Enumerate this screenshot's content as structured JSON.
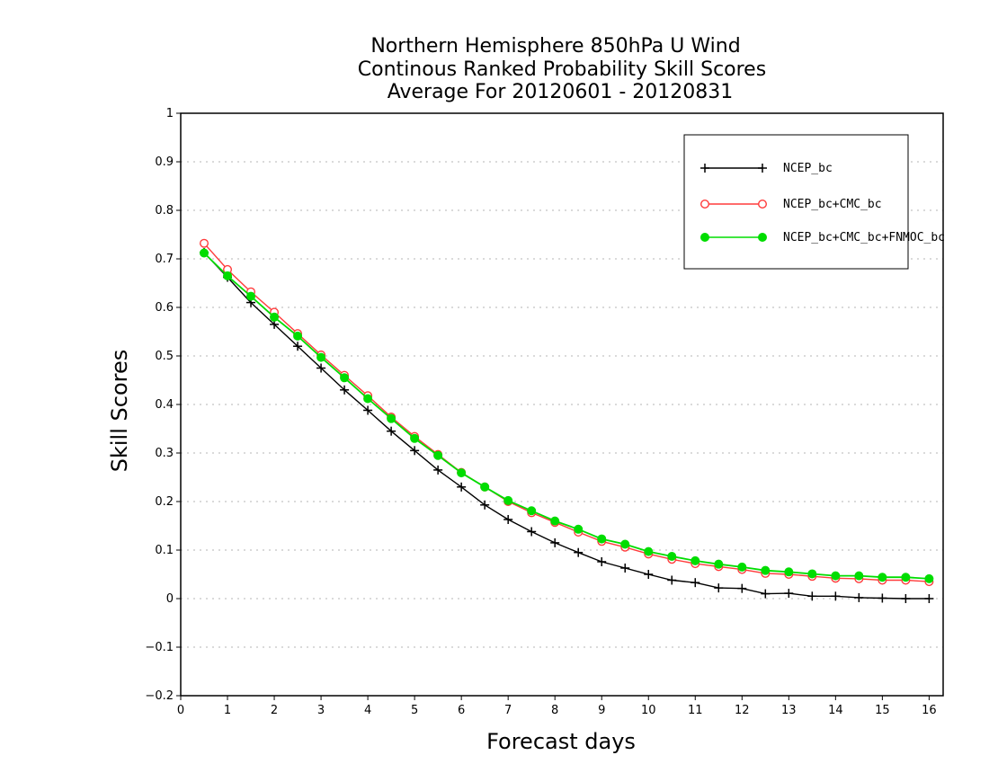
{
  "chart_data": {
    "type": "line",
    "title": [
      "Northern Hemisphere 850hPa U Wind",
      "Continous Ranked Probability Skill Scores",
      "Average For 20120601 - 20120831"
    ],
    "xlabel": "Forecast days",
    "ylabel": "Skill Scores",
    "xlim": [
      0,
      16.3
    ],
    "ylim": [
      -0.2,
      1.0
    ],
    "x_ticks": [
      0,
      1,
      2,
      3,
      4,
      5,
      6,
      7,
      8,
      9,
      10,
      11,
      12,
      13,
      14,
      15,
      16
    ],
    "y_ticks": [
      -0.2,
      -0.1,
      0,
      0.1,
      0.2,
      0.3,
      0.4,
      0.5,
      0.6,
      0.7,
      0.8,
      0.9,
      1
    ],
    "grid": true,
    "legend_position": "top-right",
    "x": [
      0.5,
      1,
      1.5,
      2,
      2.5,
      3,
      3.5,
      4,
      4.5,
      5,
      5.5,
      6,
      6.5,
      7,
      7.5,
      8,
      8.5,
      9,
      9.5,
      10,
      10.5,
      11,
      11.5,
      12,
      12.5,
      13,
      13.5,
      14,
      14.5,
      15,
      15.5,
      16
    ],
    "series": [
      {
        "name": "NCEP_bc",
        "color": "#000000",
        "marker": "plus",
        "values": [
          0.713,
          0.662,
          0.61,
          0.565,
          0.52,
          0.475,
          0.43,
          0.388,
          0.345,
          0.305,
          0.265,
          0.23,
          0.193,
          0.163,
          0.138,
          0.115,
          0.095,
          0.076,
          0.063,
          0.05,
          0.038,
          0.033,
          0.022,
          0.021,
          0.01,
          0.011,
          0.005,
          0.005,
          0.002,
          0.001,
          0.0,
          0.0
        ]
      },
      {
        "name": "NCEP_bc+CMC_bc",
        "color": "#ff3b3b",
        "marker": "open-circle",
        "values": [
          0.732,
          0.678,
          0.632,
          0.59,
          0.546,
          0.502,
          0.46,
          0.418,
          0.374,
          0.334,
          0.297,
          0.26,
          0.23,
          0.2,
          0.177,
          0.157,
          0.137,
          0.118,
          0.106,
          0.092,
          0.081,
          0.072,
          0.066,
          0.06,
          0.052,
          0.05,
          0.046,
          0.042,
          0.041,
          0.038,
          0.038,
          0.035
        ]
      },
      {
        "name": "NCEP_bc+CMC_bc+FNMOC_bc",
        "color": "#00dd00",
        "marker": "filled-circle",
        "values": [
          0.712,
          0.665,
          0.623,
          0.58,
          0.541,
          0.497,
          0.455,
          0.412,
          0.371,
          0.33,
          0.295,
          0.259,
          0.23,
          0.202,
          0.181,
          0.16,
          0.143,
          0.123,
          0.112,
          0.097,
          0.087,
          0.078,
          0.071,
          0.065,
          0.058,
          0.055,
          0.051,
          0.047,
          0.047,
          0.044,
          0.044,
          0.041
        ]
      }
    ]
  }
}
